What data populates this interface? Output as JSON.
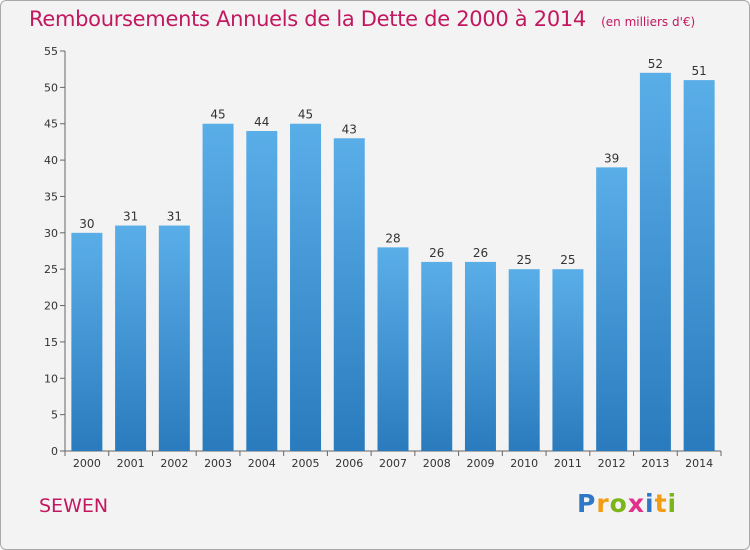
{
  "chart_data": {
    "type": "bar",
    "title": "Remboursements Annuels de la Dette de 2000 à 2014",
    "subtitle": "(en milliers d'€)",
    "categories": [
      "2000",
      "2001",
      "2002",
      "2003",
      "2004",
      "2005",
      "2006",
      "2007",
      "2008",
      "2009",
      "2010",
      "2011",
      "2012",
      "2013",
      "2014"
    ],
    "values": [
      30,
      31,
      31,
      45,
      44,
      45,
      43,
      28,
      26,
      26,
      25,
      25,
      39,
      52,
      51
    ],
    "ylim": [
      0,
      55
    ],
    "yticks": [
      0,
      5,
      10,
      15,
      20,
      25,
      30,
      35,
      40,
      45,
      50,
      55
    ],
    "xlabel": "",
    "ylabel": "",
    "grid": false,
    "legend": "none",
    "colors": {
      "bar_light": "#5aaee8",
      "bar_dark": "#2a7bbd",
      "title": "#c21860",
      "background": "#f3f3f3"
    }
  },
  "footer": {
    "commune": "SEWEN",
    "logo_letters": [
      {
        "ch": "P",
        "color": "#2f78c8"
      },
      {
        "ch": "r",
        "color": "#f39c12"
      },
      {
        "ch": "o",
        "color": "#7cb518"
      },
      {
        "ch": "x",
        "color": "#e0308a"
      },
      {
        "ch": "i",
        "color": "#2f78c8"
      },
      {
        "ch": "t",
        "color": "#f39c12"
      },
      {
        "ch": "i",
        "color": "#7cb518"
      }
    ]
  }
}
